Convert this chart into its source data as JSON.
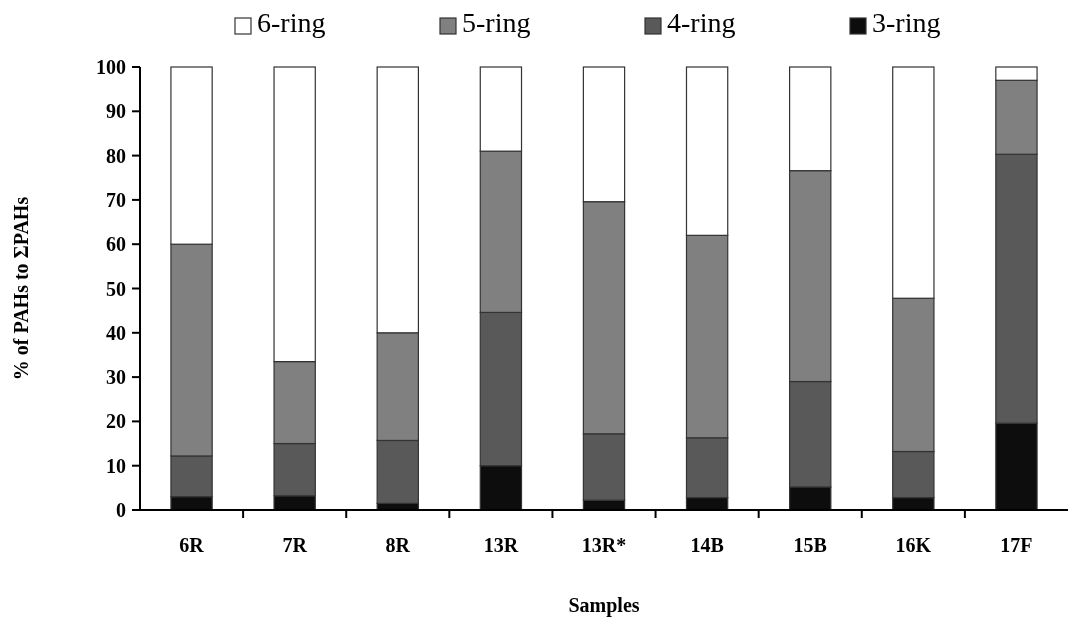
{
  "chart_data": {
    "type": "bar",
    "stacked": true,
    "xlabel": "Samples",
    "ylabel": "% of PAHs to ΣPAHs",
    "categories": [
      "6R",
      "7R",
      "8R",
      "13R",
      "13R*",
      "14B",
      "15B",
      "16K",
      "17F"
    ],
    "series": [
      {
        "name": "3-ring",
        "color": "#0d0d0d",
        "values": [
          3,
          3.2,
          1.5,
          10,
          2.2,
          2.8,
          5.2,
          2.8,
          19.6
        ]
      },
      {
        "name": "4-ring",
        "color": "#595959",
        "values": [
          9.2,
          11.8,
          14.2,
          34.6,
          15,
          13.5,
          23.8,
          10.4,
          60.7
        ]
      },
      {
        "name": "5-ring",
        "color": "#808080",
        "values": [
          47.8,
          18.5,
          24.3,
          36.4,
          52.4,
          45.7,
          47.6,
          34.6,
          16.7
        ]
      },
      {
        "name": "6-ring",
        "color": "#ffffff",
        "values": [
          40,
          66.5,
          60,
          19,
          30.4,
          38,
          23.4,
          52.2,
          3
        ]
      }
    ],
    "ylim": [
      0,
      100
    ],
    "yticks": [
      0,
      10,
      20,
      30,
      40,
      50,
      60,
      70,
      80,
      90,
      100
    ],
    "legend": "top",
    "grid": false
  }
}
